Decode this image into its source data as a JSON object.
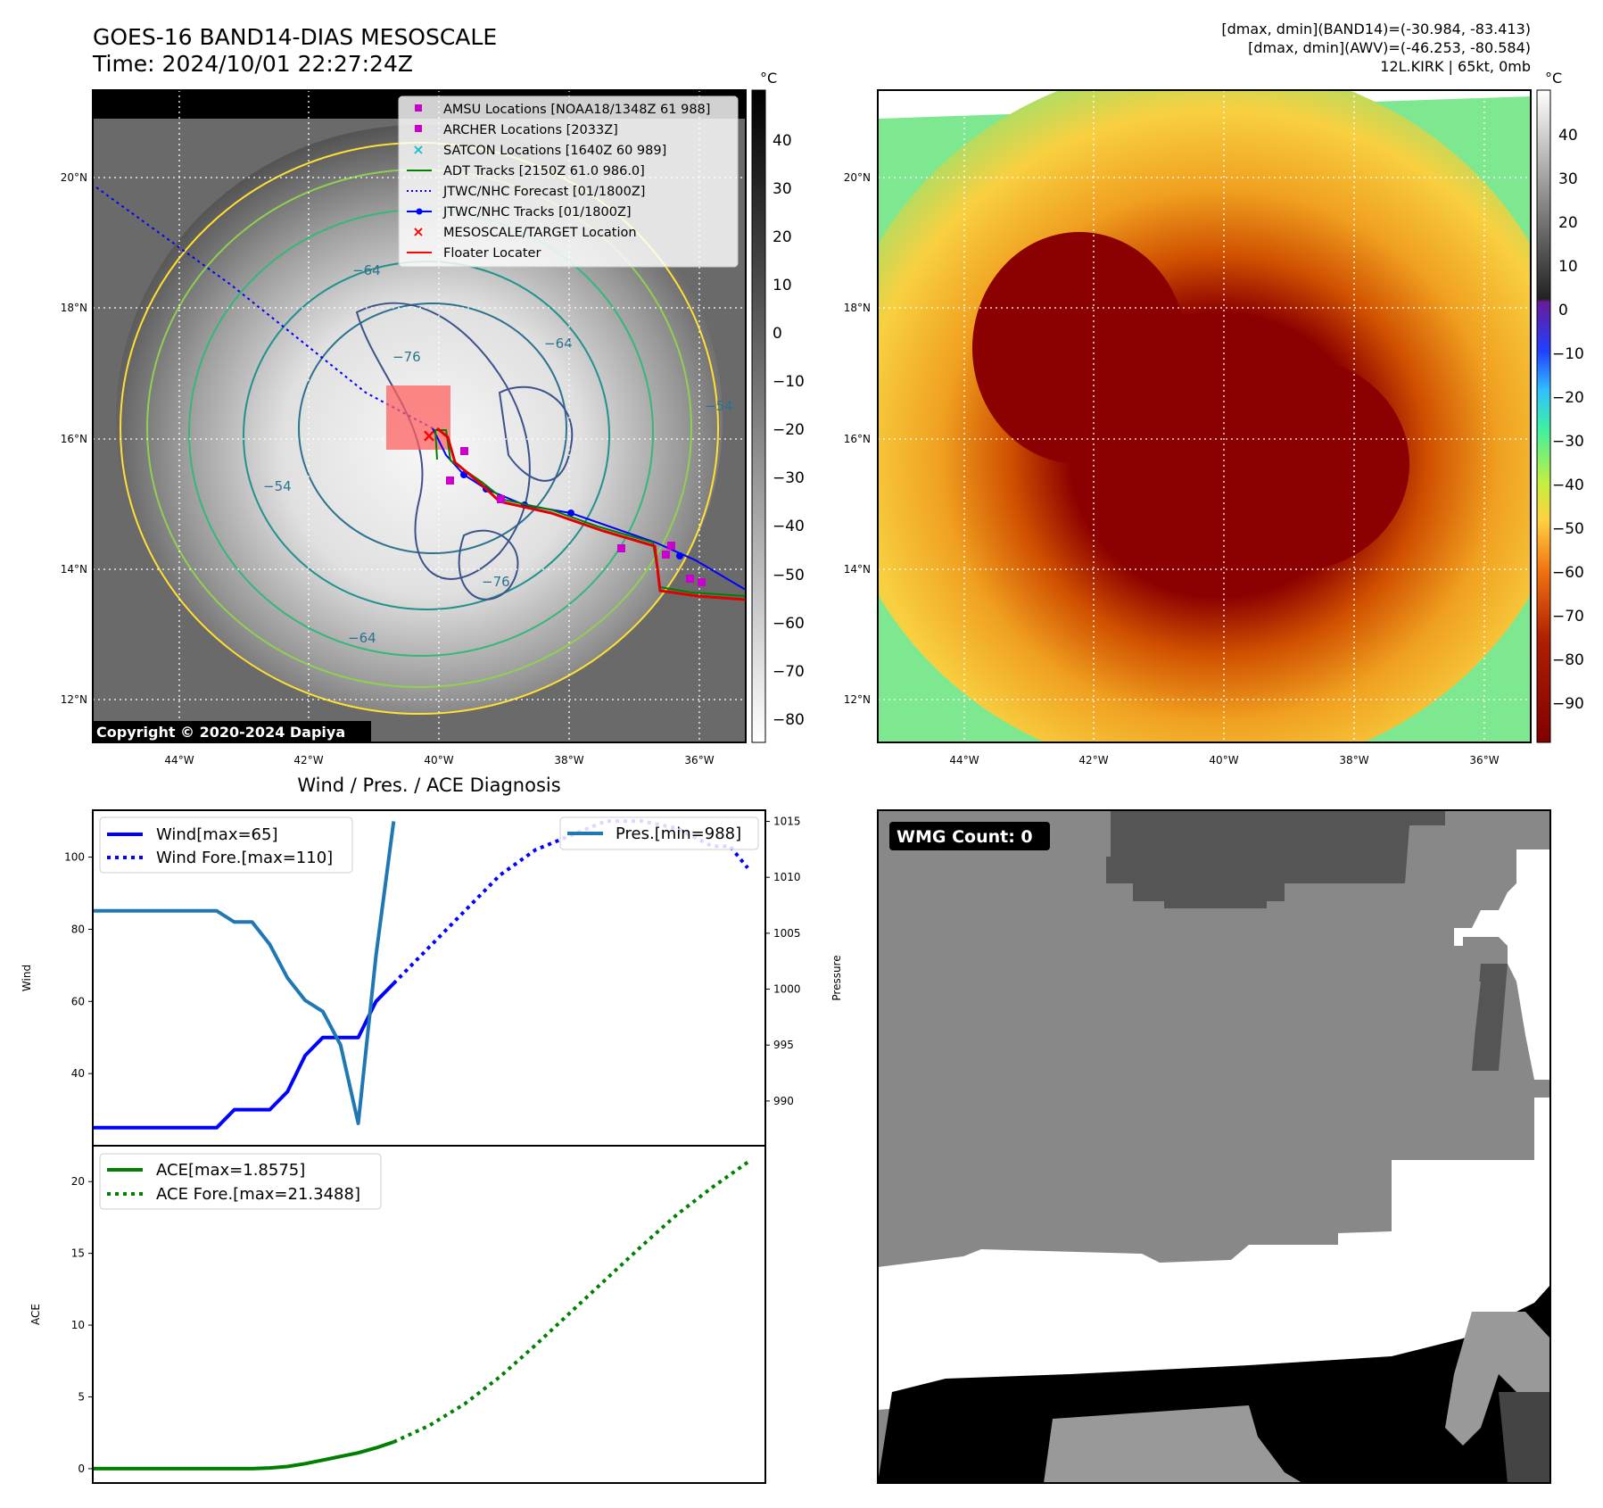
{
  "header": {
    "title": "GOES-16 BAND14-DIAS MESOSCALE",
    "time": "Time: 2024/10/01 22:27:24Z",
    "info_line1": "[dmax, dmin](BAND14)=(-30.984, -83.413)",
    "info_line2": "[dmax, dmin](AWV)=(-46.253, -80.584)",
    "info_line3": "12L.KIRK | 65kt, 0mb"
  },
  "colors": {
    "wind": "#0000ff",
    "pressure": "#1f77b4",
    "ace": "#008000",
    "red": "#ff0000",
    "magenta": "#cc00cc",
    "cyan": "#17becf"
  },
  "map_panel": {
    "lat_ticks": [
      "20°N",
      "18°N",
      "16°N",
      "14°N",
      "12°N"
    ],
    "lon_ticks": [
      "44°W",
      "42°W",
      "40°W",
      "38°W",
      "36°W"
    ],
    "copyright": "Copyright © 2020-2024 Dapiya",
    "colorbar_unit": "°C",
    "colorbar_ticks": [
      "40",
      "30",
      "20",
      "10",
      "0",
      "−10",
      "−20",
      "−30",
      "−40",
      "−50",
      "−60",
      "−70",
      "−80"
    ],
    "contour_labels": [
      "−64",
      "−76",
      "−76",
      "−54",
      "−54",
      "−64",
      "−64"
    ],
    "legend": [
      {
        "label": "AMSU Locations [NOAA18/1348Z 61 988]",
        "marker": "square",
        "color": "#cc00cc"
      },
      {
        "label": "ARCHER Locations [2033Z]",
        "marker": "square",
        "color": "#cc00cc"
      },
      {
        "label": "SATCON Locations [1640Z 60 989]",
        "marker": "x",
        "color": "#17becf"
      },
      {
        "label": "ADT Tracks [2150Z 61.0 986.0]",
        "marker": "line",
        "color": "#008000"
      },
      {
        "label": "JTWC/NHC Forecast [01/1800Z]",
        "marker": "dotted",
        "color": "#0000ff"
      },
      {
        "label": "JTWC/NHC Tracks [01/1800Z]",
        "marker": "line-dot",
        "color": "#0000ff"
      },
      {
        "label": "MESOSCALE/TARGET Location",
        "marker": "x",
        "color": "#ff0000"
      },
      {
        "label": "Floater Locater",
        "marker": "line",
        "color": "#ff0000"
      }
    ]
  },
  "awv_panel": {
    "lat_ticks": [
      "20°N",
      "18°N",
      "16°N",
      "14°N",
      "12°N"
    ],
    "lon_ticks": [
      "44°W",
      "42°W",
      "40°W",
      "38°W",
      "36°W"
    ],
    "colorbar_unit": "°C",
    "colorbar_ticks": [
      "40",
      "30",
      "20",
      "10",
      "0",
      "−10",
      "−20",
      "−30",
      "−40",
      "−50",
      "−60",
      "−70",
      "−80",
      "−90"
    ]
  },
  "wmg_panel": {
    "label": "WMG Count: 0"
  },
  "chart_data": [
    {
      "type": "line",
      "title": "Wind / Pres. / ACE Diagnosis",
      "ylabel": "Wind",
      "y2label": "Pressure",
      "ylim": [
        20,
        113
      ],
      "y_ticks": [
        40,
        60,
        80,
        100
      ],
      "y2lim": [
        986,
        1016
      ],
      "y2_ticks": [
        990,
        995,
        1000,
        1005,
        1010,
        1015
      ],
      "xlim": [
        0,
        38
      ],
      "legend": [
        "Wind[max=65]",
        "Wind Fore.[max=110]"
      ],
      "legend2": [
        "Pres.[min=988]"
      ],
      "series": [
        {
          "name": "Wind[max=65]",
          "style": "solid",
          "color": "#0000ff",
          "x": [
            0,
            4,
            7,
            8,
            9,
            10,
            11,
            12,
            13,
            14,
            15,
            16,
            17
          ],
          "y": [
            25,
            25,
            25,
            30,
            30,
            30,
            35,
            45,
            50,
            50,
            50,
            60,
            65
          ]
        },
        {
          "name": "Wind Fore.[max=110]",
          "style": "dotted",
          "color": "#0000ff",
          "x": [
            17,
            19,
            21,
            23,
            25,
            27,
            29,
            31,
            33,
            35,
            36,
            37
          ],
          "y": [
            65,
            75,
            85,
            95,
            102,
            106,
            110,
            110,
            108,
            103,
            103,
            97
          ]
        },
        {
          "name": "Pres.[min=988]",
          "style": "solid",
          "color": "#1f77b4",
          "axis": "right",
          "x": [
            0,
            4,
            7,
            8,
            9,
            10,
            11,
            12,
            13,
            14,
            15,
            16,
            17
          ],
          "y": [
            1007,
            1007,
            1007,
            1006,
            1006,
            1004,
            1001,
            999,
            998,
            995,
            988,
            1003,
            1015
          ]
        }
      ]
    },
    {
      "type": "line",
      "ylabel": "ACE",
      "ylim": [
        -1,
        22.5
      ],
      "y_ticks": [
        0,
        5,
        10,
        15,
        20
      ],
      "xlim": [
        0,
        38
      ],
      "legend": [
        "ACE[max=1.8575]",
        "ACE Fore.[max=21.3488]"
      ],
      "series": [
        {
          "name": "ACE[max=1.8575]",
          "style": "solid",
          "color": "#008000",
          "x": [
            0,
            4,
            7,
            8,
            9,
            10,
            11,
            12,
            13,
            14,
            15,
            16,
            17
          ],
          "y": [
            0,
            0,
            0,
            0,
            0,
            0.05,
            0.15,
            0.35,
            0.6,
            0.85,
            1.1,
            1.45,
            1.86
          ]
        },
        {
          "name": "ACE Fore.[max=21.3488]",
          "style": "dotted",
          "color": "#008000",
          "x": [
            17,
            19,
            21,
            23,
            25,
            27,
            29,
            31,
            33,
            35,
            37
          ],
          "y": [
            1.86,
            3.0,
            4.5,
            6.4,
            8.6,
            10.9,
            13.2,
            15.5,
            17.7,
            19.6,
            21.35
          ]
        }
      ]
    }
  ]
}
